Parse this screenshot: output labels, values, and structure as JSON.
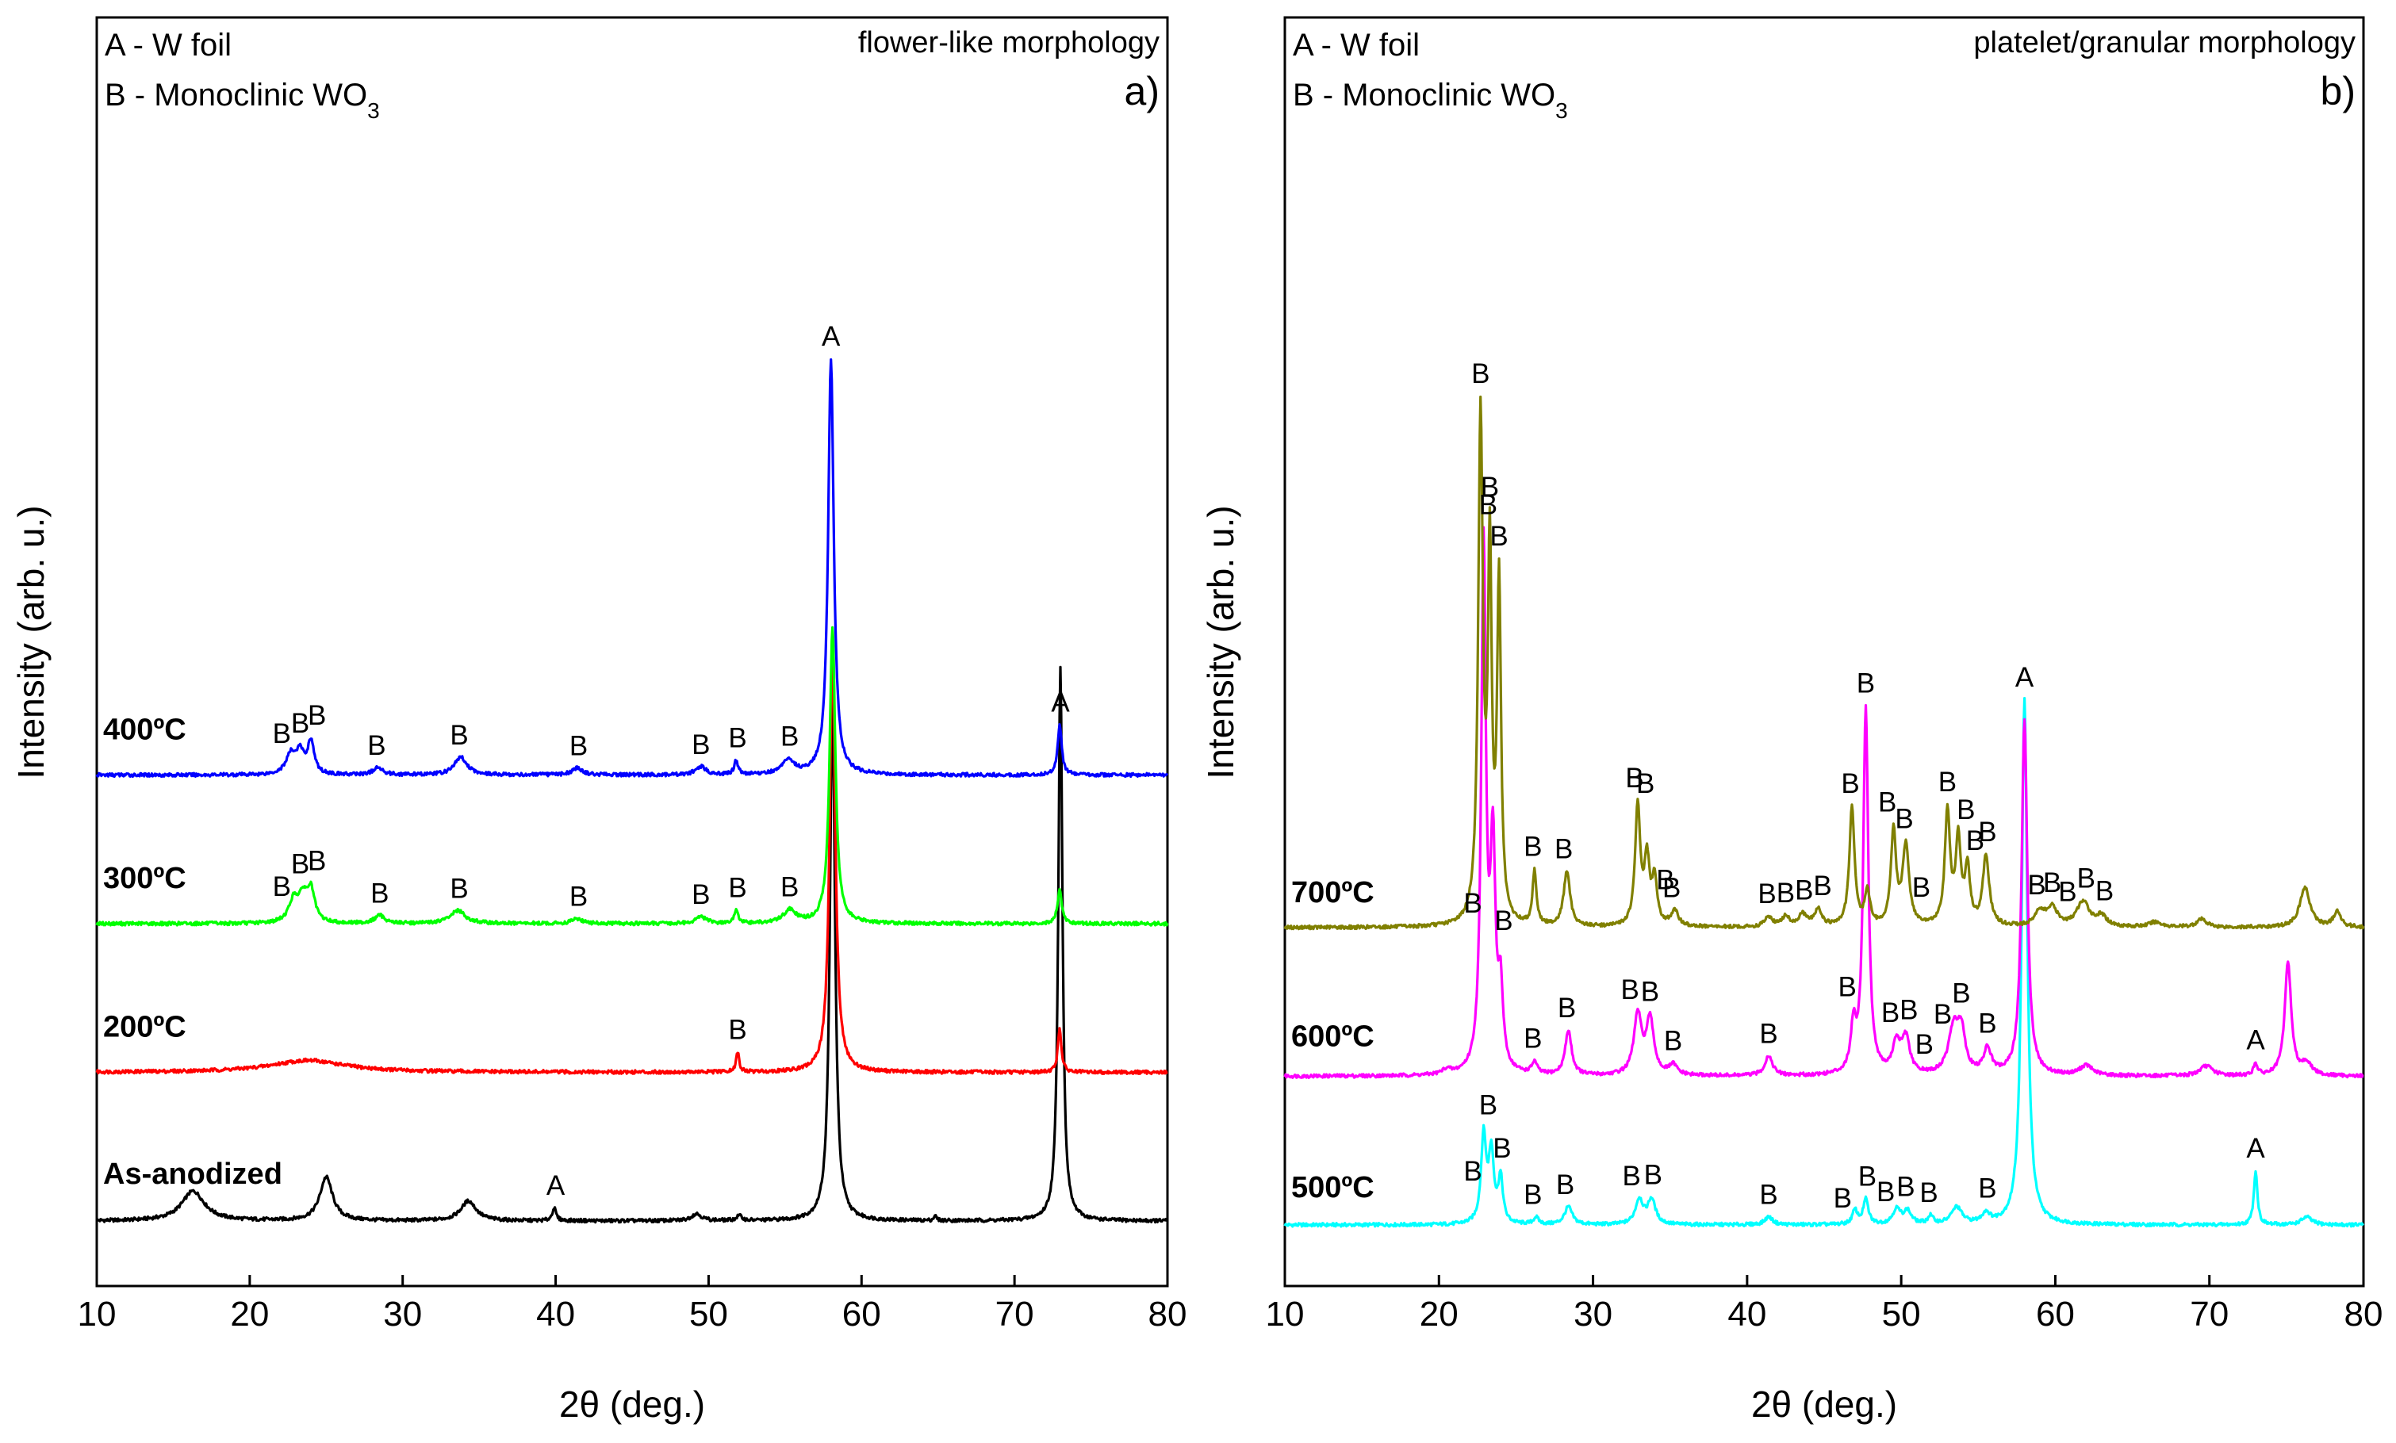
{
  "ylabel": "Intensity (arb. u.)",
  "xlabel": "2θ (deg.)",
  "chart_data": [
    {
      "type": "line",
      "panel": "a)",
      "title": "flower-like morphology",
      "legend": [
        "A - W foil",
        "B - Monoclinic WO3"
      ],
      "xlabel": "2θ (deg.)",
      "ylabel": "Intensity (arb. u.)",
      "xlim": [
        10,
        80
      ],
      "xticks": [
        10,
        20,
        30,
        40,
        50,
        60,
        70,
        80
      ],
      "y_units": "arbitrary, stacked traces",
      "series": [
        {
          "name": "As-anodized",
          "color": "#000000",
          "baseline": 0.0,
          "peaks": [
            [
              16.3,
              0.3,
              0.9
            ],
            [
              25.0,
              0.44,
              0.5
            ],
            [
              34.3,
              0.2,
              0.6
            ],
            [
              39.9,
              0.13,
              0.15
            ],
            [
              49.2,
              0.07,
              0.4
            ],
            [
              52.0,
              0.05,
              0.2
            ],
            [
              58.1,
              5.3,
              0.2
            ],
            [
              64.8,
              0.05,
              0.1
            ],
            [
              73.0,
              5.6,
              0.16
            ]
          ],
          "labels": [
            [
              40.0,
              "A"
            ]
          ]
        },
        {
          "name": "200ºC",
          "color": "#ff0000",
          "baseline": 1.5,
          "peaks": [
            [
              23.8,
              0.12,
              3.0
            ],
            [
              51.9,
              0.2,
              0.12
            ],
            [
              58.1,
              4.3,
              0.22
            ],
            [
              72.95,
              0.44,
              0.14
            ]
          ],
          "labels": [
            [
              51.9,
              "B"
            ]
          ]
        },
        {
          "name": "300ºC",
          "color": "#00ff00",
          "baseline": 3.0,
          "peaks": [
            [
              22.9,
              0.24,
              0.4
            ],
            [
              23.5,
              0.22,
              0.3
            ],
            [
              24.0,
              0.32,
              0.3
            ],
            [
              28.5,
              0.08,
              0.4
            ],
            [
              33.6,
              0.13,
              0.6
            ],
            [
              41.4,
              0.05,
              0.4
            ],
            [
              49.5,
              0.07,
              0.4
            ],
            [
              51.8,
              0.13,
              0.15
            ],
            [
              55.3,
              0.13,
              0.5
            ],
            [
              58.1,
              3.0,
              0.22
            ],
            [
              72.95,
              0.35,
              0.16
            ]
          ],
          "labels": [
            [
              22.1,
              "B"
            ],
            [
              23.3,
              "B"
            ],
            [
              24.4,
              "B"
            ],
            [
              28.5,
              "B"
            ],
            [
              33.7,
              "B"
            ],
            [
              41.5,
              "B"
            ],
            [
              49.5,
              "B"
            ],
            [
              51.9,
              "B"
            ],
            [
              55.3,
              "B"
            ]
          ]
        },
        {
          "name": "400ºC",
          "color": "#0000ff",
          "baseline": 4.5,
          "peaks": [
            [
              22.7,
              0.2,
              0.4
            ],
            [
              23.3,
              0.2,
              0.3
            ],
            [
              24.0,
              0.33,
              0.25
            ],
            [
              28.4,
              0.07,
              0.4
            ],
            [
              33.8,
              0.18,
              0.5
            ],
            [
              41.4,
              0.07,
              0.4
            ],
            [
              49.5,
              0.08,
              0.4
            ],
            [
              51.8,
              0.14,
              0.15
            ],
            [
              55.2,
              0.14,
              0.5
            ],
            [
              58.0,
              4.2,
              0.22
            ],
            [
              72.95,
              0.51,
              0.16
            ]
          ],
          "labels": [
            [
              22.1,
              "B"
            ],
            [
              23.3,
              "B"
            ],
            [
              24.4,
              "B"
            ],
            [
              28.3,
              "B"
            ],
            [
              33.7,
              "B"
            ],
            [
              41.5,
              "B"
            ],
            [
              49.5,
              "B"
            ],
            [
              51.9,
              "B"
            ],
            [
              55.3,
              "B"
            ],
            [
              58.0,
              "A"
            ],
            [
              73.0,
              "A"
            ]
          ]
        }
      ]
    },
    {
      "type": "line",
      "panel": "b)",
      "title": "platelet/granular morphology",
      "legend": [
        "A - W foil",
        "B - Monoclinic WO3"
      ],
      "xlabel": "2θ (deg.)",
      "ylabel": "Intensity (arb. u.)",
      "xlim": [
        10,
        80
      ],
      "xticks": [
        10,
        20,
        30,
        40,
        50,
        60,
        70,
        80
      ],
      "y_units": "arbitrary, stacked traces",
      "series": [
        {
          "name": "500ºC",
          "color": "#00ffff",
          "baseline": 0.0,
          "peaks": [
            [
              22.9,
              0.88,
              0.2
            ],
            [
              23.4,
              0.7,
              0.2
            ],
            [
              24.0,
              0.45,
              0.18
            ],
            [
              26.3,
              0.07,
              0.2
            ],
            [
              28.4,
              0.18,
              0.3
            ],
            [
              33.0,
              0.25,
              0.3
            ],
            [
              33.8,
              0.25,
              0.3
            ],
            [
              41.4,
              0.08,
              0.3
            ],
            [
              47.0,
              0.14,
              0.2
            ],
            [
              47.7,
              0.25,
              0.2
            ],
            [
              49.7,
              0.15,
              0.3
            ],
            [
              50.4,
              0.13,
              0.3
            ],
            [
              51.9,
              0.08,
              0.2
            ],
            [
              53.6,
              0.17,
              0.4
            ],
            [
              55.5,
              0.1,
              0.3
            ],
            [
              58.0,
              5.3,
              0.22
            ],
            [
              73.0,
              0.55,
              0.14
            ],
            [
              76.3,
              0.08,
              0.4
            ]
          ],
          "labels": [
            [
              22.2,
              "B"
            ],
            [
              23.2,
              "B"
            ],
            [
              24.1,
              "B"
            ],
            [
              26.1,
              "B"
            ],
            [
              28.2,
              "B"
            ],
            [
              32.5,
              "B"
            ],
            [
              33.9,
              "B"
            ],
            [
              41.4,
              "B"
            ],
            [
              46.2,
              "B"
            ],
            [
              47.8,
              "B"
            ],
            [
              49.0,
              "B"
            ],
            [
              50.3,
              "B"
            ],
            [
              51.8,
              "B"
            ],
            [
              55.6,
              "B"
            ],
            [
              73.0,
              "A"
            ]
          ]
        },
        {
          "name": "600ºC",
          "color": "#ff00ff",
          "baseline": 1.5,
          "peaks": [
            [
              20.5,
              0.05,
              0.3
            ],
            [
              22.9,
              5.3,
              0.18
            ],
            [
              23.5,
              2.2,
              0.2
            ],
            [
              24.0,
              0.75,
              0.18
            ],
            [
              26.2,
              0.12,
              0.2
            ],
            [
              28.4,
              0.45,
              0.25
            ],
            [
              32.9,
              0.6,
              0.3
            ],
            [
              33.7,
              0.55,
              0.3
            ],
            [
              35.2,
              0.1,
              0.3
            ],
            [
              41.4,
              0.2,
              0.3
            ],
            [
              46.9,
              0.45,
              0.2
            ],
            [
              47.7,
              3.7,
              0.2
            ],
            [
              49.7,
              0.3,
              0.3
            ],
            [
              50.3,
              0.35,
              0.3
            ],
            [
              53.4,
              0.45,
              0.4
            ],
            [
              53.9,
              0.4,
              0.3
            ],
            [
              55.6,
              0.25,
              0.3
            ],
            [
              58.0,
              3.6,
              0.22
            ],
            [
              62.0,
              0.1,
              0.5
            ],
            [
              69.8,
              0.1,
              0.5
            ],
            [
              73.0,
              0.12,
              0.15
            ],
            [
              75.1,
              1.15,
              0.25
            ],
            [
              76.3,
              0.12,
              0.4
            ]
          ],
          "labels": [
            [
              22.2,
              "B"
            ],
            [
              23.2,
              "B"
            ],
            [
              24.2,
              "B"
            ],
            [
              26.1,
              "B"
            ],
            [
              28.3,
              "B"
            ],
            [
              32.4,
              "B"
            ],
            [
              33.7,
              "B"
            ],
            [
              35.2,
              "B"
            ],
            [
              41.4,
              "B"
            ],
            [
              46.5,
              "B"
            ],
            [
              47.7,
              "B"
            ],
            [
              49.3,
              "B"
            ],
            [
              50.5,
              "B"
            ],
            [
              51.5,
              "B"
            ],
            [
              52.7,
              "B"
            ],
            [
              53.9,
              "B"
            ],
            [
              55.6,
              "B"
            ],
            [
              73.0,
              "A"
            ]
          ]
        },
        {
          "name": "700ºC",
          "color": "#808000",
          "baseline": 3.0,
          "peaks": [
            [
              22.7,
              5.1,
              0.18
            ],
            [
              23.3,
              3.6,
              0.15
            ],
            [
              23.9,
              3.4,
              0.15
            ],
            [
              26.2,
              0.55,
              0.15
            ],
            [
              28.3,
              0.55,
              0.25
            ],
            [
              32.9,
              1.2,
              0.2
            ],
            [
              33.5,
              0.65,
              0.2
            ],
            [
              34.0,
              0.45,
              0.2
            ],
            [
              35.3,
              0.15,
              0.3
            ],
            [
              41.4,
              0.1,
              0.3
            ],
            [
              42.5,
              0.1,
              0.3
            ],
            [
              43.6,
              0.12,
              0.3
            ],
            [
              44.6,
              0.17,
              0.3
            ],
            [
              46.8,
              1.2,
              0.2
            ],
            [
              47.8,
              0.35,
              0.2
            ],
            [
              49.5,
              0.95,
              0.2
            ],
            [
              50.3,
              0.8,
              0.25
            ],
            [
              53.0,
              1.15,
              0.2
            ],
            [
              53.7,
              0.85,
              0.2
            ],
            [
              54.3,
              0.55,
              0.2
            ],
            [
              55.5,
              0.7,
              0.25
            ],
            [
              59.0,
              0.15,
              0.4
            ],
            [
              59.8,
              0.18,
              0.4
            ],
            [
              61.8,
              0.25,
              0.5
            ],
            [
              63.0,
              0.1,
              0.4
            ],
            [
              66.5,
              0.05,
              0.5
            ],
            [
              69.5,
              0.08,
              0.4
            ],
            [
              76.2,
              0.4,
              0.4
            ],
            [
              78.3,
              0.15,
              0.3
            ]
          ],
          "labels": [
            [
              22.7,
              "B"
            ],
            [
              23.3,
              "B"
            ],
            [
              23.9,
              "B"
            ],
            [
              26.1,
              "B"
            ],
            [
              28.1,
              "B"
            ],
            [
              32.7,
              "B"
            ],
            [
              33.4,
              "B"
            ],
            [
              34.7,
              "B"
            ],
            [
              35.1,
              "B"
            ],
            [
              41.3,
              "B"
            ],
            [
              42.5,
              "B"
            ],
            [
              43.7,
              "B"
            ],
            [
              44.9,
              "B"
            ],
            [
              46.7,
              "B"
            ],
            [
              49.1,
              "B"
            ],
            [
              50.2,
              "B"
            ],
            [
              51.3,
              "B"
            ],
            [
              53.0,
              "B"
            ],
            [
              54.2,
              "B"
            ],
            [
              54.8,
              "B"
            ],
            [
              55.6,
              "B"
            ],
            [
              58.8,
              "B"
            ],
            [
              59.8,
              "B"
            ],
            [
              60.8,
              "B"
            ],
            [
              62.0,
              "B"
            ],
            [
              63.2,
              "B"
            ]
          ]
        }
      ]
    }
  ],
  "extra_labels": [
    {
      "panel": 1,
      "x": 58.0,
      "text": "A"
    }
  ]
}
